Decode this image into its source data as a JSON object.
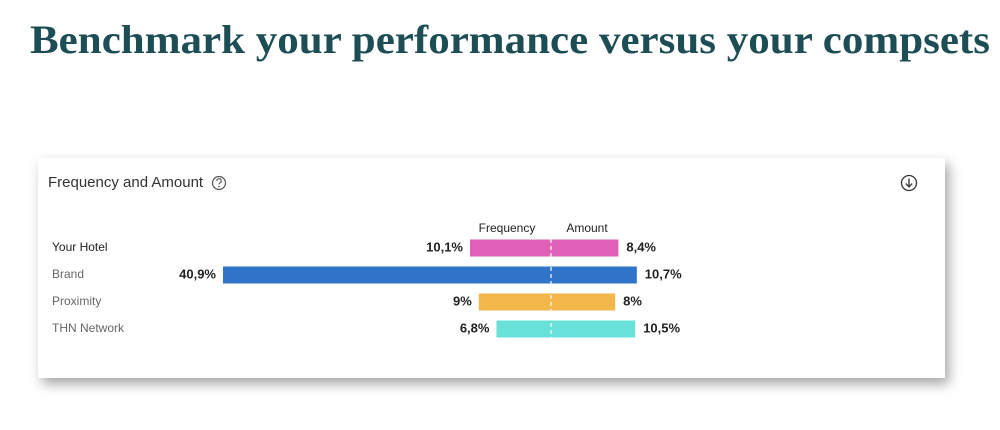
{
  "page_title": "Benchmark your performance versus your compsets",
  "chart_data": {
    "type": "diverging_bar",
    "title": "Frequency and Amount",
    "categories": [
      "Your Hotel",
      "Brand",
      "Proximity",
      "THN Network"
    ],
    "colors": [
      "#e060b8",
      "#2f74c8",
      "#f2b64a",
      "#68e2d8"
    ],
    "series": [
      {
        "name": "Frequency",
        "side": "left",
        "values": [
          10.1,
          40.9,
          9,
          6.8
        ],
        "value_labels": [
          "10,1%",
          "40,9%",
          "9%",
          "6,8%"
        ]
      },
      {
        "name": "Amount",
        "side": "right",
        "values": [
          8.4,
          10.7,
          8,
          10.5
        ],
        "value_labels": [
          "8,4%",
          "10,7%",
          "8%",
          "10,5%"
        ]
      }
    ]
  }
}
